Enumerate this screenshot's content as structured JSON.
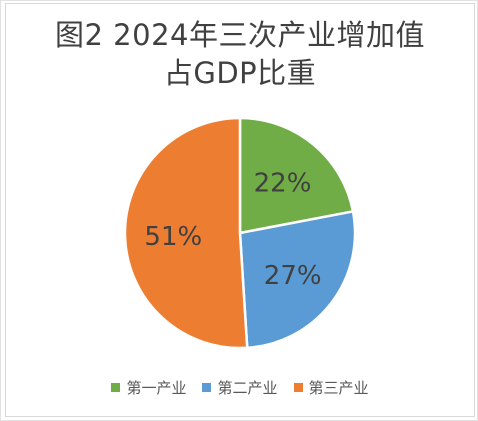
{
  "chart_data": {
    "type": "pie",
    "title_lines": [
      "图2  2024年三次产业增加值",
      "占GDP比重"
    ],
    "categories": [
      "第一产业",
      "第二产业",
      "第三产业"
    ],
    "values": [
      22,
      27,
      51
    ],
    "data_labels": [
      "22%",
      "27%",
      "51%"
    ],
    "colors": [
      "#70ad47",
      "#5b9bd5",
      "#ed7d31"
    ],
    "start_angle_deg": 0,
    "direction": "clockwise",
    "legend_position": "bottom",
    "label_color": "#404040"
  }
}
